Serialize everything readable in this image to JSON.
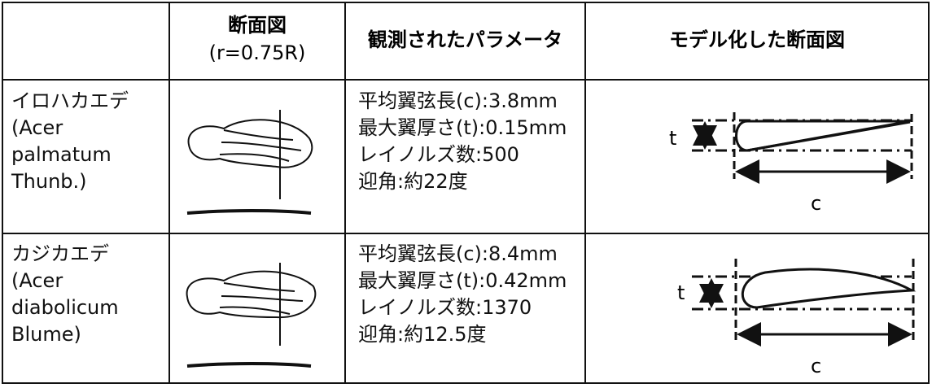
{
  "table": {
    "columns": [
      {
        "lines": [
          "断面図",
          "(r=0.75R)"
        ]
      },
      {
        "lines": [
          "観測されたパラメータ"
        ]
      },
      {
        "lines": [
          "モデル化した断面図"
        ]
      }
    ],
    "rows": [
      {
        "name_lines": [
          "イロハカエデ",
          "(Acer",
          "palmatum",
          "Thunb.)"
        ],
        "params": [
          "平均翼弦長(c):3.8mm",
          "最大翼厚さ(t):0.15mm",
          "レイノルズ数:500",
          "迎角:約22度"
        ],
        "model_labels": [
          "t",
          "c"
        ]
      },
      {
        "name_lines": [
          "カジカエデ",
          "(Acer",
          "diabolicum",
          "Blume)"
        ],
        "params": [
          "平均翼弦長(c):8.4mm",
          "最大翼厚さ(t):0.42mm",
          "レイノルズ数:1370",
          "迎角:約12.5度"
        ],
        "model_labels": [
          "t",
          "c"
        ]
      }
    ]
  }
}
